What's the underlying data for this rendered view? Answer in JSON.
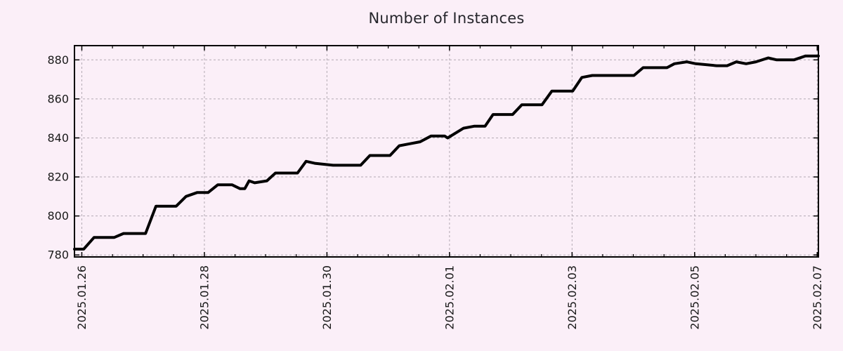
{
  "chart_data": {
    "type": "line",
    "title": "Number of Instances",
    "legend": "none",
    "grid": true,
    "x_axis": {
      "range_days": [
        -0.12,
        12.02
      ],
      "major_tick_days": [
        0,
        2,
        4,
        6,
        8,
        10,
        12
      ],
      "major_tick_labels": [
        "2025.01.26",
        "2025.01.28",
        "2025.01.30",
        "2025.02.01",
        "2025.02.03",
        "2025.02.05",
        "2025.02.07"
      ],
      "minor_tick_interval_days": 0.5
    },
    "y_axis": {
      "range": [
        779,
        887.3
      ],
      "ticks": [
        780,
        800,
        820,
        840,
        860,
        880
      ],
      "tick_labels": [
        "780",
        "800",
        "820",
        "840",
        "860",
        "880"
      ]
    },
    "series": [
      {
        "name": "instances",
        "color": "#000000",
        "points": [
          [
            -0.12,
            783
          ],
          [
            0.03,
            783
          ],
          [
            0.2,
            789
          ],
          [
            0.53,
            789
          ],
          [
            0.68,
            791
          ],
          [
            1.04,
            791
          ],
          [
            1.21,
            805
          ],
          [
            1.54,
            805
          ],
          [
            1.7,
            810
          ],
          [
            1.88,
            812
          ],
          [
            2.06,
            812
          ],
          [
            2.22,
            816
          ],
          [
            2.45,
            816
          ],
          [
            2.58,
            814
          ],
          [
            2.66,
            814
          ],
          [
            2.73,
            818
          ],
          [
            2.82,
            817
          ],
          [
            3.02,
            818
          ],
          [
            3.16,
            822
          ],
          [
            3.52,
            822
          ],
          [
            3.66,
            828
          ],
          [
            3.8,
            827
          ],
          [
            4.1,
            826
          ],
          [
            4.55,
            826
          ],
          [
            4.7,
            831
          ],
          [
            5.03,
            831
          ],
          [
            5.18,
            836
          ],
          [
            5.35,
            837
          ],
          [
            5.52,
            838
          ],
          [
            5.7,
            841
          ],
          [
            5.92,
            841
          ],
          [
            5.97,
            840
          ],
          [
            6.23,
            845
          ],
          [
            6.4,
            846
          ],
          [
            6.58,
            846
          ],
          [
            6.71,
            852
          ],
          [
            7.03,
            852
          ],
          [
            7.18,
            857
          ],
          [
            7.51,
            857
          ],
          [
            7.67,
            864
          ],
          [
            8.01,
            864
          ],
          [
            8.16,
            871
          ],
          [
            8.33,
            872
          ],
          [
            9.01,
            872
          ],
          [
            9.16,
            876
          ],
          [
            9.55,
            876
          ],
          [
            9.67,
            878
          ],
          [
            9.87,
            879
          ],
          [
            10.02,
            878
          ],
          [
            10.36,
            877
          ],
          [
            10.53,
            877
          ],
          [
            10.68,
            879
          ],
          [
            10.84,
            878
          ],
          [
            11.0,
            879
          ],
          [
            11.2,
            881
          ],
          [
            11.34,
            880
          ],
          [
            11.62,
            880
          ],
          [
            11.81,
            882
          ],
          [
            12.02,
            882
          ]
        ]
      }
    ],
    "colors": {
      "background": "#fbeff8",
      "grid": "#b3aab3",
      "frame": "#000000",
      "tick_text": "#1a1a1a",
      "title_text": "#26262c",
      "line": "#000000"
    }
  }
}
